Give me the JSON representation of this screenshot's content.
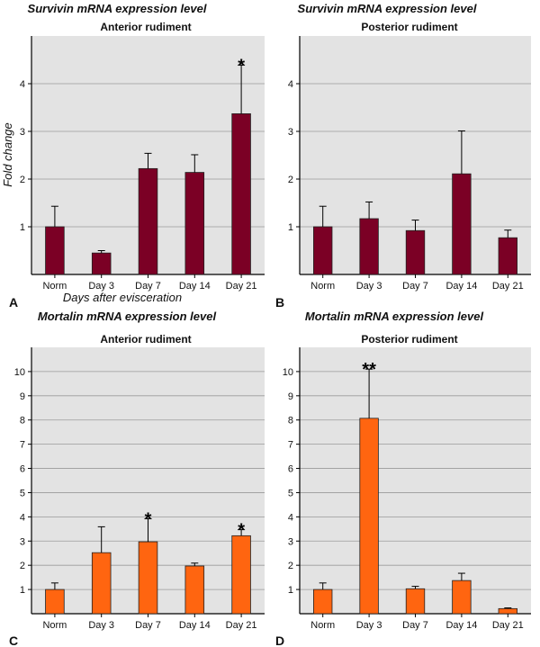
{
  "chart_data": [
    {
      "type": "bar",
      "panel_label": "A",
      "title": "Survivin mRNA expression level",
      "subtitle": "Anterior rudiment",
      "xlabel": "Days after evisceration",
      "ylabel": "Fold change",
      "categories": [
        "Norm",
        "Day 3",
        "Day 7",
        "Day 14",
        "Day 21"
      ],
      "values": [
        1.0,
        0.45,
        2.22,
        2.14,
        3.37
      ],
      "errors": [
        0.43,
        0.05,
        0.32,
        0.37,
        1.02
      ],
      "significance": [
        "",
        "",
        "",
        "",
        "*"
      ],
      "ylim": [
        0,
        5
      ],
      "yticks": [
        1,
        2,
        3,
        4
      ],
      "bar_color": "#7b0025",
      "plot_background": "#e3e3e3",
      "grid": true
    },
    {
      "type": "bar",
      "panel_label": "B",
      "title": "Survivin mRNA expression level",
      "subtitle": "Posterior rudiment",
      "xlabel": "",
      "ylabel": "",
      "categories": [
        "Norm",
        "Day 3",
        "Day 7",
        "Day 14",
        "Day 21"
      ],
      "values": [
        1.0,
        1.17,
        0.92,
        2.11,
        0.77
      ],
      "errors": [
        0.43,
        0.35,
        0.22,
        0.9,
        0.16
      ],
      "significance": [
        "",
        "",
        "",
        "",
        ""
      ],
      "ylim": [
        0,
        5
      ],
      "yticks": [
        1,
        2,
        3,
        4
      ],
      "bar_color": "#7b0025",
      "plot_background": "#e3e3e3",
      "grid": true
    },
    {
      "type": "bar",
      "panel_label": "C",
      "title": "Mortalin mRNA expression level",
      "subtitle": "Anterior rudiment",
      "xlabel": "",
      "ylabel": "",
      "categories": [
        "Norm",
        "Day 3",
        "Day 7",
        "Day 14",
        "Day 21"
      ],
      "values": [
        1.0,
        2.52,
        2.97,
        1.97,
        3.22
      ],
      "errors": [
        0.27,
        1.07,
        0.95,
        0.12,
        0.25
      ],
      "significance": [
        "",
        "",
        "*",
        "",
        "*"
      ],
      "ylim": [
        0,
        11
      ],
      "yticks": [
        1,
        2,
        3,
        4,
        5,
        6,
        7,
        8,
        9,
        10
      ],
      "bar_color": "#ff6510",
      "plot_background": "#e3e3e3",
      "grid": true
    },
    {
      "type": "bar",
      "panel_label": "D",
      "title": "Mortalin mRNA expression level",
      "subtitle": "Posterior rudiment",
      "xlabel": "",
      "ylabel": "",
      "categories": [
        "Norm",
        "Day 3",
        "Day 7",
        "Day 14",
        "Day 21"
      ],
      "values": [
        1.0,
        8.07,
        1.03,
        1.37,
        0.21
      ],
      "errors": [
        0.27,
        2.03,
        0.1,
        0.3,
        0.03
      ],
      "significance": [
        "",
        "**",
        "",
        "",
        ""
      ],
      "ylim": [
        0,
        11
      ],
      "yticks": [
        1,
        2,
        3,
        4,
        5,
        6,
        7,
        8,
        9,
        10
      ],
      "bar_color": "#ff6510",
      "plot_background": "#e3e3e3",
      "grid": true
    }
  ]
}
